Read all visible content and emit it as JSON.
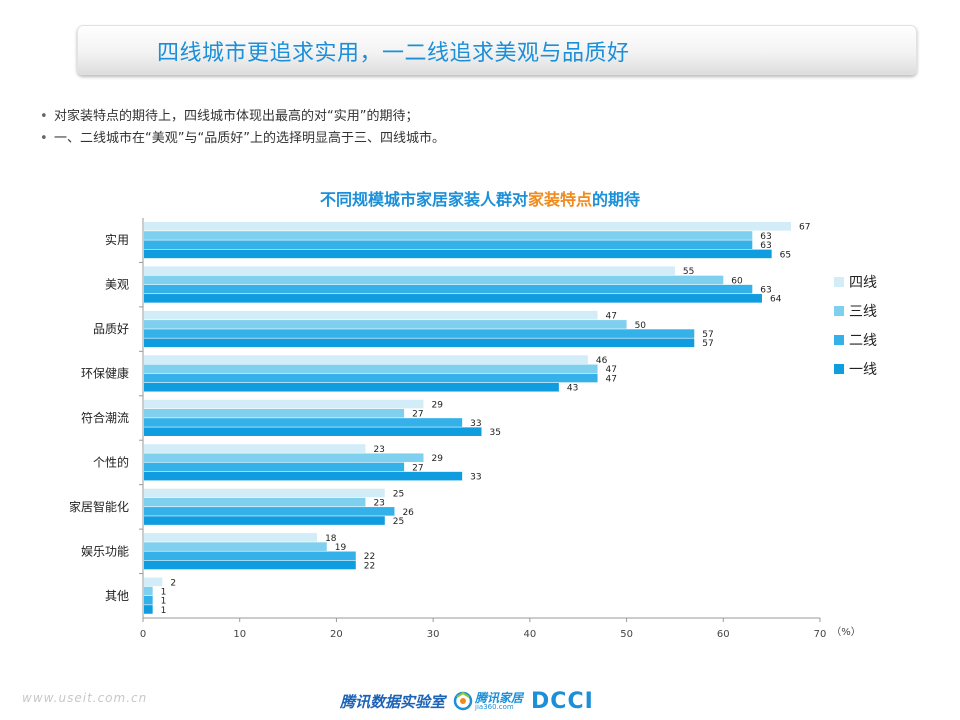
{
  "header": {
    "title": "四线城市更追求实用，一二线追求美观与品质好"
  },
  "bullets": [
    "对家装特点的期待上，四线城市体现出最高的对“实用”的期待；",
    "一、二线城市在“美观”与“品质好”上的选择明显高于三、四线城市。"
  ],
  "bullet_mark": "•",
  "chart_data": {
    "type": "bar",
    "orientation": "horizontal",
    "title": "不同规模城市家居家装人群对家装特点的期待",
    "title_parts": [
      "不同规模城市家居家装人群对",
      "家装特点",
      "的期待"
    ],
    "unit": "（%）",
    "categories": [
      "实用",
      "美观",
      "品质好",
      "环保健康",
      "符合潮流",
      "个性的",
      "家居智能化",
      "娱乐功能",
      "其他"
    ],
    "series": [
      {
        "name": "四线",
        "color": "#d2ecf8",
        "values": [
          67,
          55,
          47,
          46,
          29,
          23,
          25,
          18,
          2
        ]
      },
      {
        "name": "三线",
        "color": "#7fcfee",
        "values": [
          63,
          60,
          50,
          47,
          27,
          29,
          23,
          19,
          1
        ]
      },
      {
        "name": "二线",
        "color": "#35b1ea",
        "values": [
          63,
          63,
          57,
          47,
          33,
          27,
          26,
          22,
          1
        ]
      },
      {
        "name": "一线",
        "color": "#0f9de0",
        "values": [
          65,
          64,
          57,
          43,
          35,
          33,
          25,
          22,
          1
        ]
      }
    ],
    "xlim": [
      0,
      70
    ],
    "xticks": [
      0,
      10,
      20,
      30,
      40,
      50,
      60,
      70
    ],
    "legend": "right",
    "grid": false
  },
  "footer": {
    "url": "www.useit.com.cn",
    "logo_lab": "腾讯数据实验室",
    "logo_jiaju": "腾讯家居",
    "logo_jiaju_sub": "jia360.com",
    "logo_dcci": "DCCI"
  },
  "colors": {
    "title": "#1b8fd8",
    "highlight": "#f08a1c"
  }
}
